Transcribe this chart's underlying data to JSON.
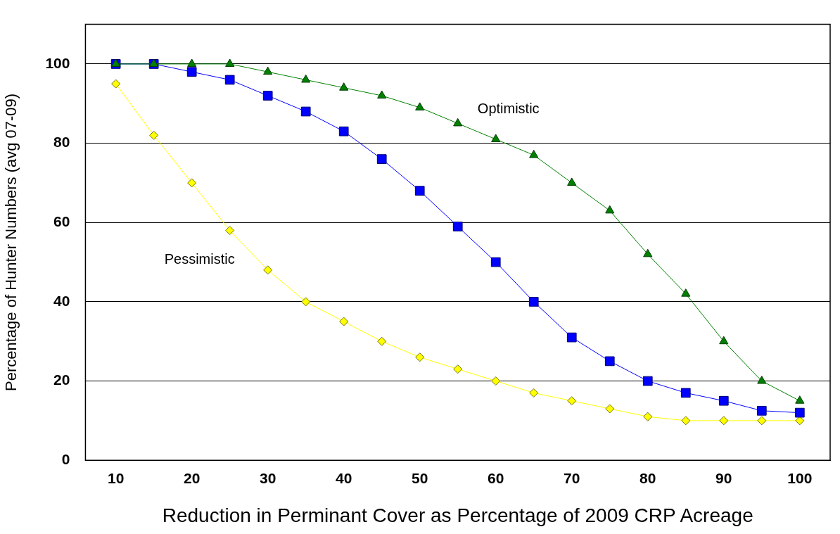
{
  "chart_data": {
    "type": "line",
    "xlabel": "Reduction in Perminant Cover as Percentage of 2009 CRP Acreage",
    "ylabel": "Percentage of Hunter Numbers (avg 07-09)",
    "x": [
      10,
      15,
      20,
      25,
      30,
      35,
      40,
      45,
      50,
      55,
      60,
      65,
      70,
      75,
      80,
      85,
      90,
      95,
      100
    ],
    "series": [
      {
        "name": "Optimistic",
        "color": "#008000",
        "marker": "triangle",
        "values": [
          100,
          100,
          100,
          100,
          98,
          96,
          94,
          92,
          89,
          85,
          81,
          77,
          70,
          63,
          52,
          42,
          30,
          20,
          15
        ]
      },
      {
        "color": "#0000ff",
        "marker": "square",
        "values": [
          100,
          100,
          98,
          96,
          92,
          88,
          83,
          76,
          68,
          59,
          50,
          40,
          31,
          25,
          20,
          17,
          15,
          12.5,
          12
        ]
      },
      {
        "name": "Pessimistic",
        "color": "#ffff00",
        "marker": "diamond",
        "values": [
          95,
          82,
          70,
          58,
          48,
          40,
          35,
          30,
          26,
          23,
          20,
          17,
          15,
          13,
          11,
          10,
          10,
          10,
          10
        ]
      }
    ],
    "xlim": [
      6,
      104
    ],
    "xticks": [
      10,
      20,
      30,
      40,
      50,
      60,
      70,
      80,
      90,
      100
    ],
    "ylim": [
      0,
      110
    ],
    "yticks": [
      0,
      20,
      40,
      60,
      80,
      100
    ],
    "grid": "y",
    "legend": false,
    "line_style": "solid"
  }
}
